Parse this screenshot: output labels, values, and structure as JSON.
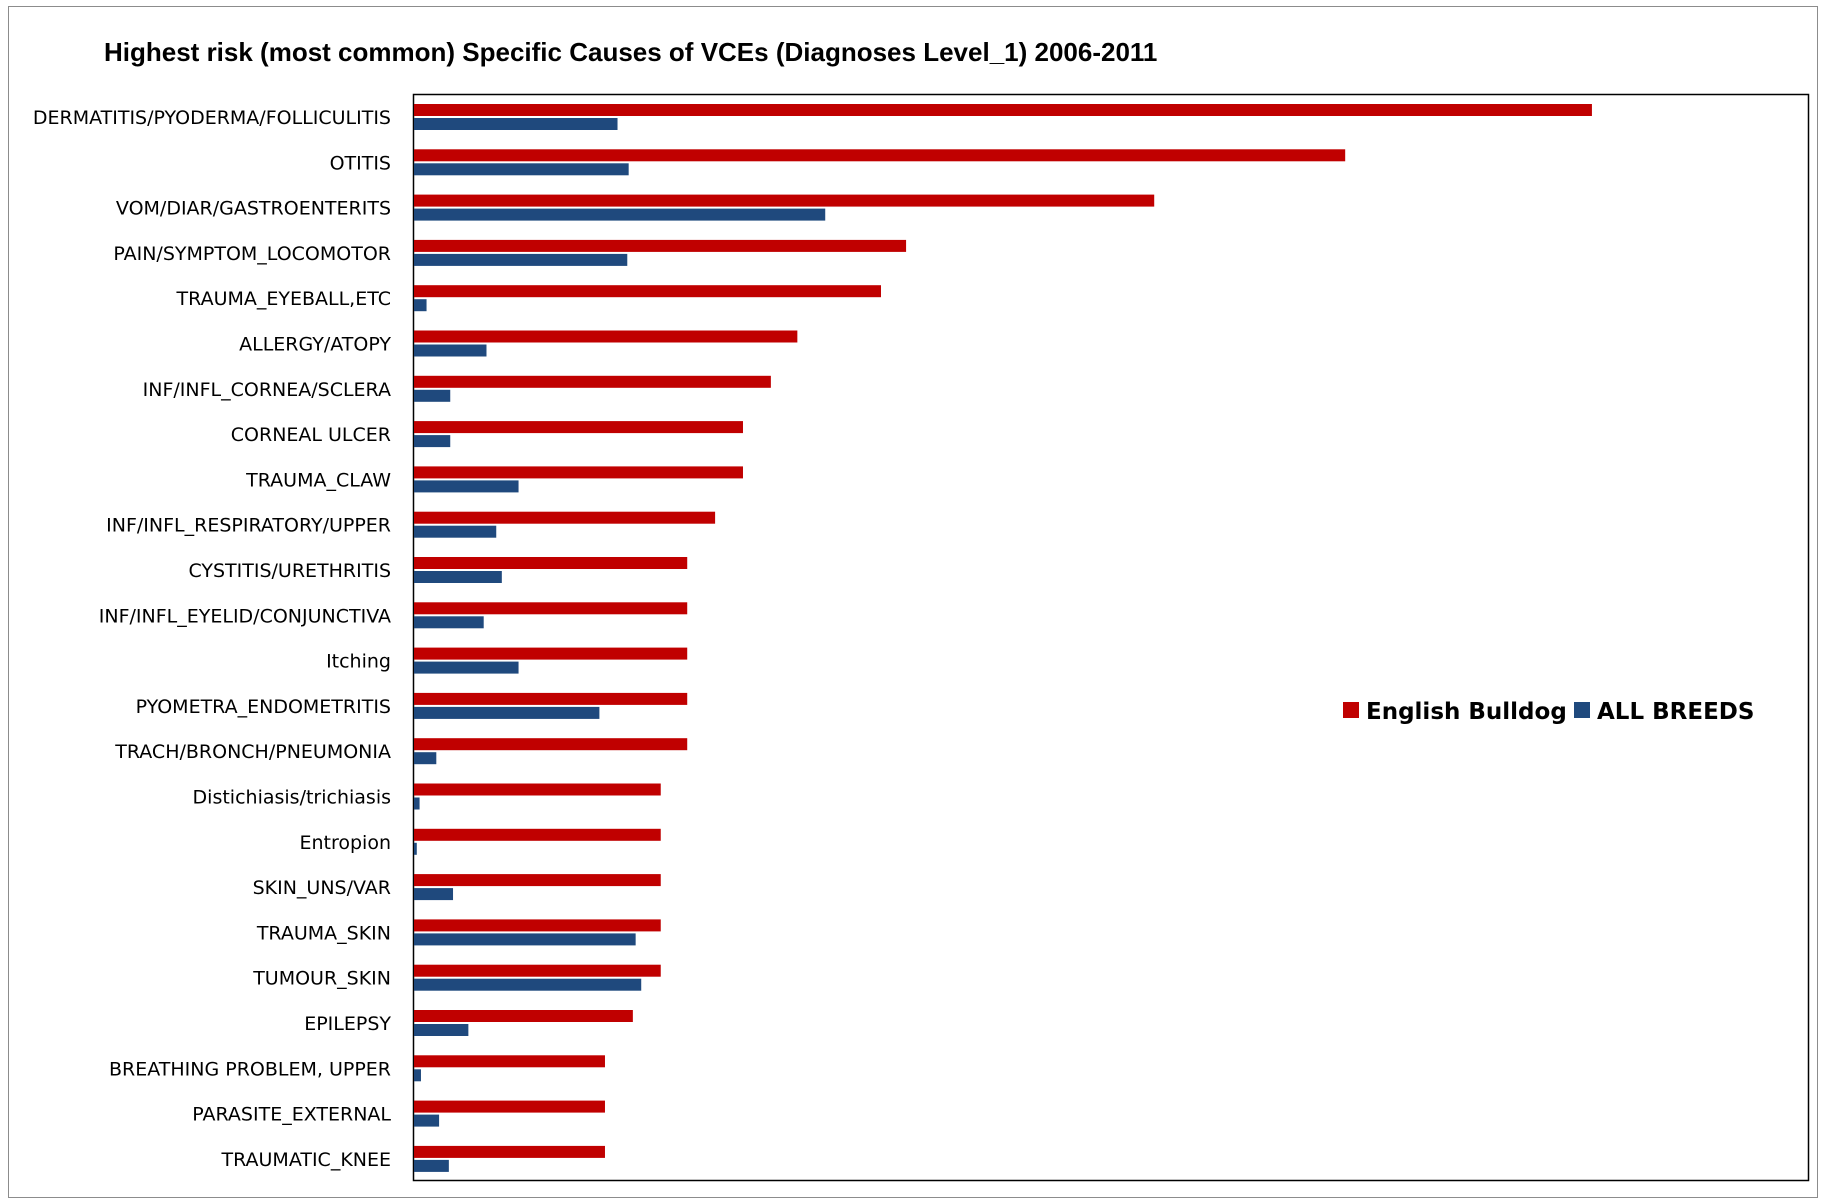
{
  "chart_data": {
    "type": "bar",
    "orientation": "horizontal",
    "title": "Highest risk (most common) Specific Causes of VCEs (Diagnoses Level_1) 2006-2011",
    "xlabel": "",
    "ylabel": "",
    "xlim": [
      0,
      100
    ],
    "grid": false,
    "legend_position": "right",
    "categories": [
      "DERMATITIS/PYODERMA/FOLLICULITIS",
      "OTITIS",
      "VOM/DIAR/GASTROENTERITS",
      "PAIN/SYMPTOM_LOCOMOTOR",
      "TRAUMA_EYEBALL,ETC",
      "ALLERGY/ATOPY",
      "INF/INFL_CORNEA/SCLERA",
      "CORNEAL ULCER",
      "TRAUMA_CLAW",
      "INF/INFL_RESPIRATORY/UPPER",
      "CYSTITIS/URETHRITIS",
      "INF/INFL_EYELID/CONJUNCTIVA",
      "Itching",
      "PYOMETRA_ENDOMETRITIS",
      "TRACH/BRONCH/PNEUMONIA",
      "Distichiasis/trichiasis",
      "Entropion",
      "SKIN_UNS/VAR",
      "TRAUMA_SKIN",
      "TUMOUR_SKIN",
      "EPILEPSY",
      "BREATHING PROBLEM, UPPER",
      "PARASITE_EXTERNAL",
      "TRAUMATIC_KNEE"
    ],
    "series": [
      {
        "name": "English Bulldog",
        "color": "#c00000",
        "values": [
          84.5,
          66.8,
          53.1,
          35.3,
          33.5,
          27.5,
          25.6,
          23.6,
          23.6,
          21.6,
          19.6,
          19.6,
          19.6,
          19.6,
          19.6,
          17.7,
          17.7,
          17.7,
          17.7,
          17.7,
          15.7,
          13.7,
          13.7,
          13.7
        ]
      },
      {
        "name": "ALL BREEDS",
        "color": "#1f497d",
        "values": [
          14.6,
          15.4,
          29.5,
          15.3,
          0.9,
          5.2,
          2.6,
          2.6,
          7.5,
          5.9,
          6.3,
          5.0,
          7.5,
          13.3,
          1.6,
          0.4,
          0.2,
          2.8,
          15.9,
          16.3,
          3.9,
          0.5,
          1.8,
          2.5
        ]
      }
    ]
  }
}
